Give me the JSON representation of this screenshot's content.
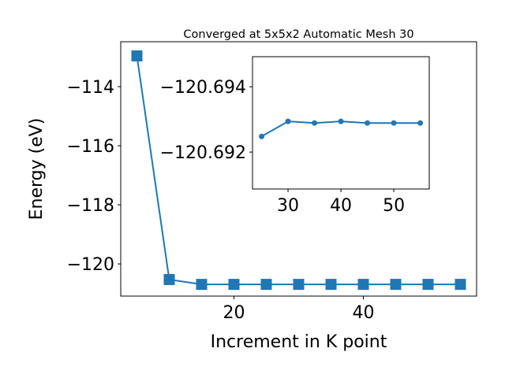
{
  "chart_data": [
    {
      "type": "line",
      "title": "Converged at 5x5x2 Automatic Mesh 30",
      "xlabel": "Increment in K point",
      "ylabel": "Energy (eV)",
      "x": [
        5,
        10,
        15,
        20,
        25,
        30,
        35,
        40,
        45,
        50,
        55
      ],
      "series": [
        {
          "name": null,
          "color": "#1f77b4",
          "marker": "square",
          "values": [
            -112.96,
            -120.53,
            -120.693,
            -120.693,
            -120.69248,
            -120.69294,
            -120.69289,
            -120.69294,
            -120.69289,
            -120.69289,
            -120.69289
          ]
        }
      ],
      "xlim": [
        2.5,
        57.5
      ],
      "xticks": [
        20,
        40
      ],
      "ylim": [
        -121.09,
        -112.48
      ],
      "yticks": [
        {
          "value": -120,
          "label": "−120"
        },
        {
          "value": -118,
          "label": "−118"
        },
        {
          "value": -116,
          "label": "−116"
        },
        {
          "value": -114,
          "label": "−114"
        }
      ]
    },
    {
      "type": "line",
      "x": [
        25,
        30,
        35,
        40,
        45,
        50,
        55
      ],
      "series": [
        {
          "name": null,
          "color": "#1f77b4",
          "marker": "circle",
          "values": [
            -120.69248,
            -120.69294,
            -120.69289,
            -120.69294,
            -120.69289,
            -120.69289,
            -120.69289
          ]
        }
      ],
      "xlim": [
        23.28,
        56.7
      ],
      "xticks": [
        30,
        40,
        50
      ],
      "ylim": [
        -120.69087,
        -120.69492
      ],
      "yticks": [
        {
          "value": -120.694,
          "label": "−120.694"
        },
        {
          "value": -120.692,
          "label": "−120.692"
        }
      ]
    }
  ]
}
